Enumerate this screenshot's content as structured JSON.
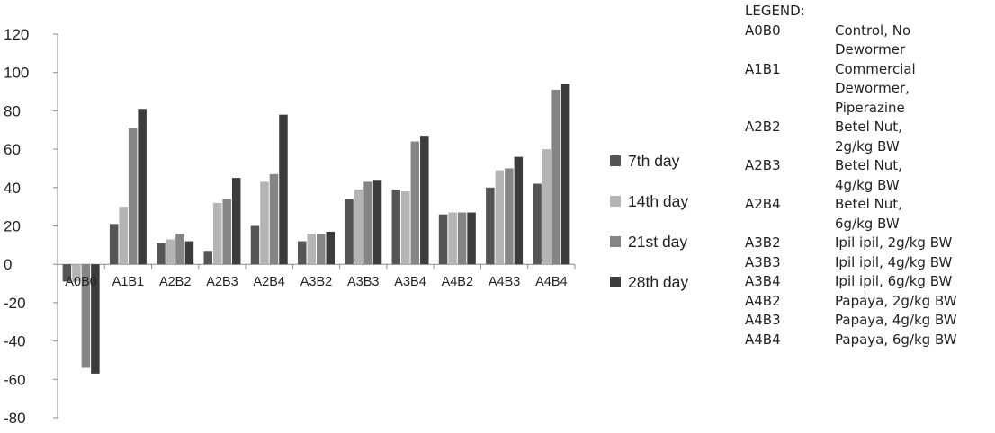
{
  "chart_data": {
    "type": "bar",
    "categories": [
      "A0B0",
      "A1B1",
      "A2B2",
      "A2B3",
      "A2B4",
      "A3B2",
      "A3B3",
      "A3B4",
      "A4B2",
      "A4B3",
      "A4B4"
    ],
    "series": [
      {
        "name": "7th day",
        "color": "#555555",
        "values": [
          -9,
          21,
          11,
          7,
          20,
          12,
          34,
          39,
          26,
          40,
          42
        ]
      },
      {
        "name": "14th day",
        "color": "#b4b4b4",
        "values": [
          -9,
          30,
          13,
          32,
          43,
          16,
          39,
          38,
          27,
          49,
          60
        ]
      },
      {
        "name": "21st day",
        "color": "#858585",
        "values": [
          -54,
          71,
          16,
          34,
          47,
          16,
          43,
          64,
          27,
          50,
          91
        ]
      },
      {
        "name": "28th day",
        "color": "#3c3c3c",
        "values": [
          -57,
          81,
          12,
          45,
          78,
          17,
          44,
          67,
          27,
          56,
          94
        ]
      }
    ],
    "yticks": [
      120,
      100,
      80,
      60,
      40,
      20,
      0,
      -20,
      -40,
      -60,
      -80
    ],
    "ylim": [
      -80,
      120
    ],
    "legend_position": "right",
    "grid": false
  },
  "key": {
    "title": "LEGEND:",
    "rows": [
      {
        "code": "A0B0",
        "lines": [
          "Control, No",
          "Dewormer"
        ]
      },
      {
        "code": "A1B1",
        "lines": [
          "Commercial",
          "Dewormer,",
          "Piperazine"
        ]
      },
      {
        "code": "A2B2",
        "lines": [
          "Betel Nut,",
          "2g/kg BW"
        ]
      },
      {
        "code": "A2B3",
        "lines": [
          "Betel Nut,",
          "4g/kg BW"
        ]
      },
      {
        "code": "A2B4",
        "lines": [
          "Betel Nut,",
          "6g/kg BW"
        ]
      },
      {
        "code": "A3B2",
        "lines": [
          "Ipil ipil, 2g/kg BW"
        ]
      },
      {
        "code": "A3B3",
        "lines": [
          "Ipil ipil, 4g/kg BW"
        ]
      },
      {
        "code": "A3B4",
        "lines": [
          "Ipil ipil, 6g/kg BW"
        ]
      },
      {
        "code": "A4B2",
        "lines": [
          "Papaya, 2g/kg BW"
        ]
      },
      {
        "code": "A4B3",
        "lines": [
          "Papaya, 4g/kg BW"
        ]
      },
      {
        "code": "A4B4",
        "lines": [
          "Papaya, 6g/kg BW"
        ]
      }
    ]
  }
}
